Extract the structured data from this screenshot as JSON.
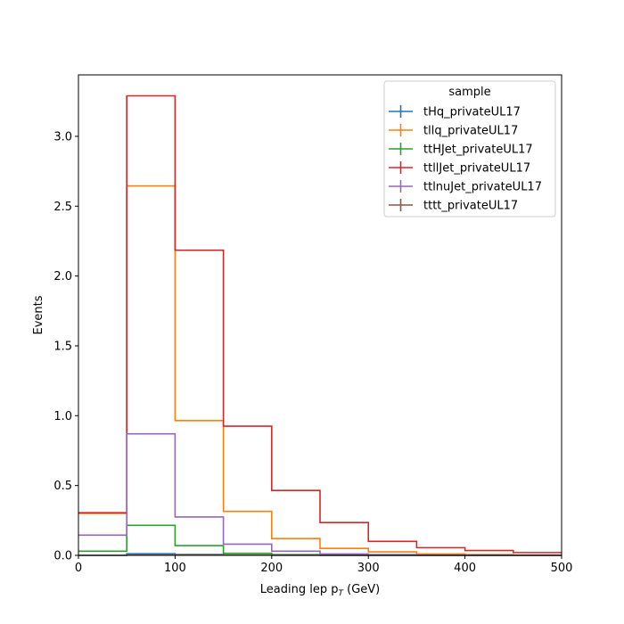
{
  "chart_data": {
    "type": "step",
    "xlabel": "Leading lep p",
    "xlabel_sub": "T",
    "xlabel_unit": " (GeV)",
    "ylabel": "Events",
    "xlim": [
      0,
      500
    ],
    "ylim": [
      0,
      3.44
    ],
    "bin_edges": [
      0,
      50,
      100,
      150,
      200,
      250,
      300,
      350,
      400,
      450,
      500
    ],
    "x_ticks": [
      0,
      100,
      200,
      300,
      400,
      500
    ],
    "y_ticks": [
      0.0,
      0.5,
      1.0,
      1.5,
      2.0,
      2.5,
      3.0
    ],
    "x_tick_labels": [
      "0",
      "100",
      "200",
      "300",
      "400",
      "500"
    ],
    "y_tick_labels": [
      "0.0",
      "0.5",
      "1.0",
      "1.5",
      "2.0",
      "2.5",
      "3.0"
    ],
    "legend": {
      "title": "sample",
      "placement": "top-right"
    },
    "series": [
      {
        "name": "tHq_privateUL17",
        "color": "#1f77b4",
        "values": [
          0.0,
          0.012,
          0.006,
          0.002,
          0.001,
          0.0,
          0.0,
          0.0,
          0.0,
          0.0
        ]
      },
      {
        "name": "tllq_privateUL17",
        "color": "#ff7f0e",
        "values": [
          0.3,
          2.645,
          0.965,
          0.315,
          0.12,
          0.05,
          0.025,
          0.01,
          0.005,
          0.002
        ]
      },
      {
        "name": "ttHJet_privateUL17",
        "color": "#2ca02c",
        "values": [
          0.03,
          0.215,
          0.07,
          0.015,
          0.005,
          0.002,
          0.001,
          0.0,
          0.0,
          0.0
        ]
      },
      {
        "name": "ttllJet_privateUL17",
        "color": "#d62728",
        "values": [
          0.305,
          3.29,
          2.185,
          0.925,
          0.465,
          0.235,
          0.1,
          0.055,
          0.035,
          0.02
        ]
      },
      {
        "name": "ttlnuJet_privateUL17",
        "color": "#9467bd",
        "values": [
          0.145,
          0.87,
          0.275,
          0.08,
          0.03,
          0.01,
          0.005,
          0.002,
          0.001,
          0.0
        ]
      },
      {
        "name": "tttt_privateUL17",
        "color": "#8c564b",
        "values": [
          0.0,
          0.003,
          0.003,
          0.002,
          0.001,
          0.0,
          0.0,
          0.0,
          0.0,
          0.0
        ]
      }
    ]
  }
}
